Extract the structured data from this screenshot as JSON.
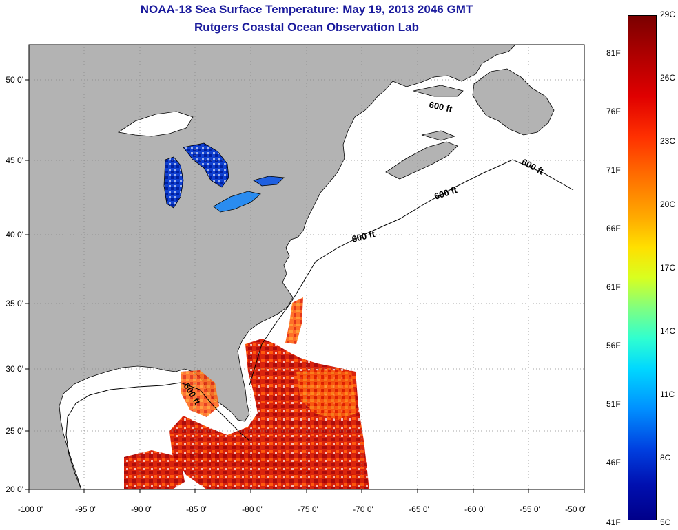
{
  "title": "NOAA-18 Sea Surface Temperature:  May 19, 2013 2046 GMT",
  "subtitle": "Rutgers Coastal Ocean Observation Lab",
  "map": {
    "lon_range": [
      -100,
      -50
    ],
    "lat_range": [
      20,
      52.5
    ],
    "lon_ticks": [
      "-100 0'",
      "-95 0'",
      "-90 0'",
      "-85 0'",
      "-80 0'",
      "-75 0'",
      "-70 0'",
      "-65 0'",
      "-60 0'",
      "-55 0'",
      "-50 0'"
    ],
    "lat_ticks": [
      "50 0'",
      "45 0'",
      "40 0'",
      "35 0'",
      "30 0'",
      "25 0'",
      "20 0'"
    ],
    "contour_label": "600 ft",
    "grid": true,
    "land_color": "#b3b3b3"
  },
  "colorbar": {
    "celsius": [
      "29C",
      "26C",
      "23C",
      "20C",
      "17C",
      "14C",
      "11C",
      "8C",
      "5C"
    ],
    "fahrenheit": [
      "81F",
      "76F",
      "71F",
      "66F",
      "61F",
      "56F",
      "51F",
      "46F",
      "41F"
    ],
    "range_c": [
      5,
      29
    ]
  }
}
